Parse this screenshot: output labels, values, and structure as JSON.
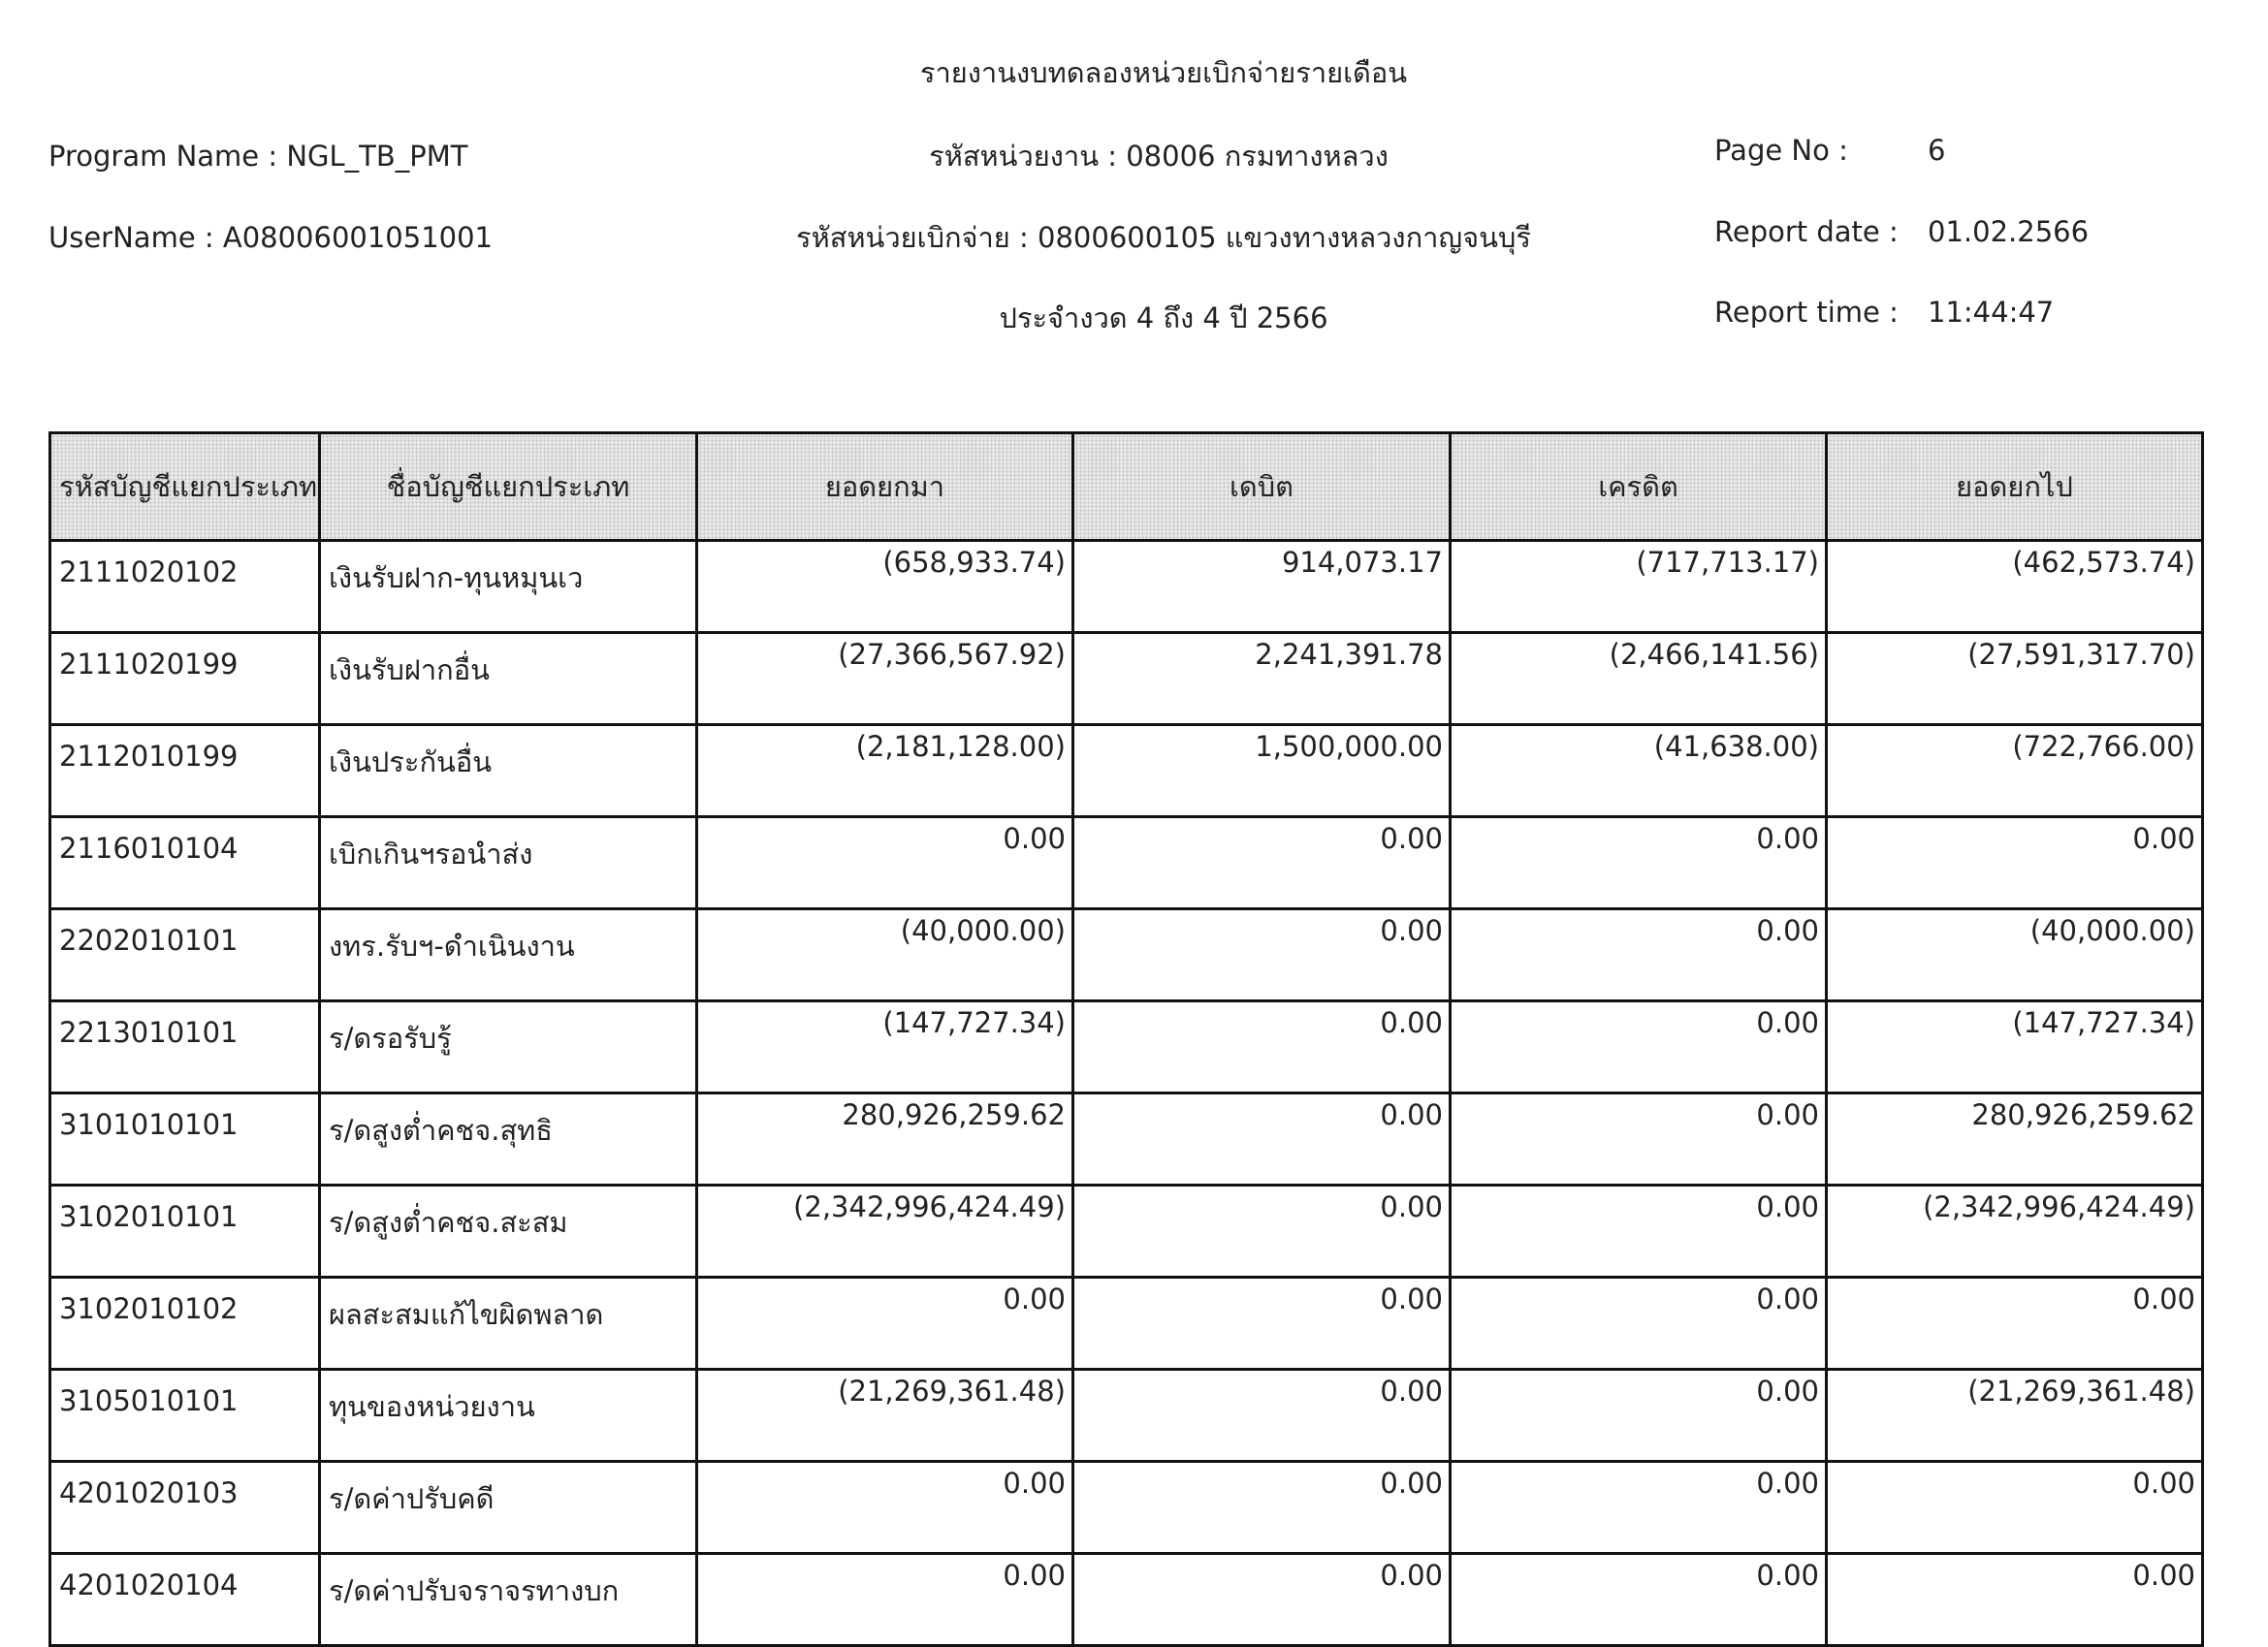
{
  "header": {
    "title": "รายงานงบทดลองหน่วยเบิกจ่ายรายเดือน",
    "program_name": "Program Name : NGL_TB_PMT",
    "user_name": "UserName : A08006001051001",
    "agency": "รหัสหน่วยงาน : 08006 กรมทางหลวง",
    "disbursing_unit": "รหัสหน่วยเบิกจ่าย : 0800600105 แขวงทางหลวงกาญจนบุรี",
    "period": "ประจำงวด 4 ถึง 4 ปี 2566",
    "page_no_label": "Page No :",
    "page_no": "6",
    "report_date_label": "Report date :",
    "report_date": "01.02.2566",
    "report_time_label": "Report time :",
    "report_time": "11:44:47"
  },
  "table": {
    "columns": [
      "รหัสบัญชีแยกประเภท",
      "ชื่อบัญชีแยกประเภท",
      "ยอดยกมา",
      "เดบิต",
      "เครดิต",
      "ยอดยกไป"
    ],
    "rows": [
      [
        "2111020102",
        "เงินรับฝาก-ทุนหมุนเว",
        "(658,933.74)",
        "914,073.17",
        "(717,713.17)",
        "(462,573.74)"
      ],
      [
        "2111020199",
        "เงินรับฝากอื่น",
        "(27,366,567.92)",
        "2,241,391.78",
        "(2,466,141.56)",
        "(27,591,317.70)"
      ],
      [
        "2112010199",
        "เงินประกันอื่น",
        "(2,181,128.00)",
        "1,500,000.00",
        "(41,638.00)",
        "(722,766.00)"
      ],
      [
        "2116010104",
        "เบิกเกินฯรอนำส่ง",
        "0.00",
        "0.00",
        "0.00",
        "0.00"
      ],
      [
        "2202010101",
        "งทร.รับฯ-ดำเนินงาน",
        "(40,000.00)",
        "0.00",
        "0.00",
        "(40,000.00)"
      ],
      [
        "2213010101",
        "ร/ดรอรับรู้",
        "(147,727.34)",
        "0.00",
        "0.00",
        "(147,727.34)"
      ],
      [
        "3101010101",
        "ร/ดสูงต่ำคชจ.สุทธิ",
        "280,926,259.62",
        "0.00",
        "0.00",
        "280,926,259.62"
      ],
      [
        "3102010101",
        "ร/ดสูงต่ำคชจ.สะสม",
        "(2,342,996,424.49)",
        "0.00",
        "0.00",
        "(2,342,996,424.49)"
      ],
      [
        "3102010102",
        "ผลสะสมแก้ไขผิดพลาด",
        "0.00",
        "0.00",
        "0.00",
        "0.00"
      ],
      [
        "3105010101",
        "ทุนของหน่วยงาน",
        "(21,269,361.48)",
        "0.00",
        "0.00",
        "(21,269,361.48)"
      ],
      [
        "4201020103",
        "ร/ดค่าปรับคดี",
        "0.00",
        "0.00",
        "0.00",
        "0.00"
      ],
      [
        "4201020104",
        "ร/ดค่าปรับจราจรทางบก",
        "0.00",
        "0.00",
        "0.00",
        "0.00"
      ]
    ]
  }
}
